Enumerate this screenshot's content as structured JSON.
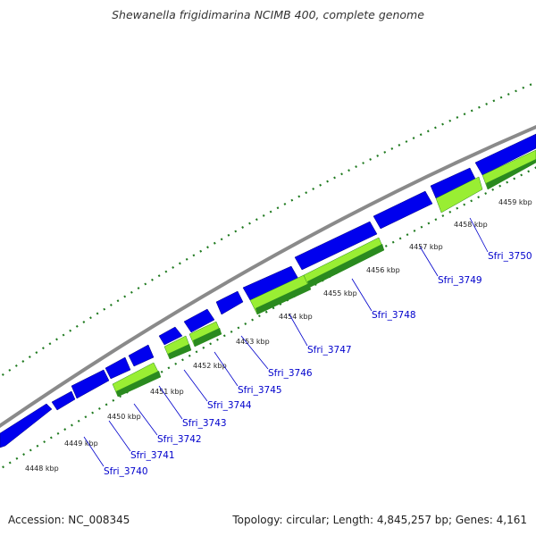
{
  "title": "Shewanella frigidimarina NCIMB 400, complete genome",
  "footer": {
    "accession": "Accession: NC_008345",
    "summary": "Topology: circular; Length: 4,845,257 bp; Genes: 4,161"
  },
  "colors": {
    "backbone": "#8a8a8a",
    "forward_gene": "#0000ee",
    "reverse_gene_light": "#99ee33",
    "reverse_gene_dark": "#2a8a1f",
    "ticks": "#1f7a1f",
    "gene_label": "#0000cc"
  },
  "scale_ticks": [
    {
      "label": "4448 kbp"
    },
    {
      "label": "4449 kbp"
    },
    {
      "label": "4450 kbp"
    },
    {
      "label": "4451 kbp"
    },
    {
      "label": "4452 kbp"
    },
    {
      "label": "4453 kbp"
    },
    {
      "label": "4454 kbp"
    },
    {
      "label": "4455 kbp"
    },
    {
      "label": "4456 kbp"
    },
    {
      "label": "4457 kbp"
    },
    {
      "label": "4458 kbp"
    },
    {
      "label": "4459 kbp"
    }
  ],
  "gene_labels": [
    {
      "label": "Sfri_3740"
    },
    {
      "label": "Sfri_3741"
    },
    {
      "label": "Sfri_3742"
    },
    {
      "label": "Sfri_3743"
    },
    {
      "label": "Sfri_3744"
    },
    {
      "label": "Sfri_3745"
    },
    {
      "label": "Sfri_3746"
    },
    {
      "label": "Sfri_3747"
    },
    {
      "label": "Sfri_3748"
    },
    {
      "label": "Sfri_3749"
    },
    {
      "label": "Sfri_3750"
    }
  ]
}
